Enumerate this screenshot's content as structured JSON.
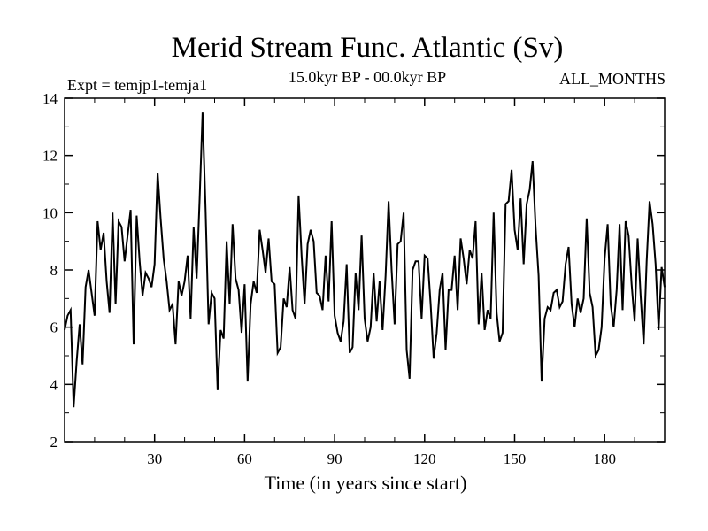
{
  "chart_data": {
    "type": "line",
    "title": "Merid Stream Func. Atlantic (Sv)",
    "subtitle_left": "Expt = temjp1-temja1",
    "subtitle_center": "15.0kyr BP - 00.0kyr BP",
    "subtitle_right": "ALL_MONTHS",
    "xlabel": "Time (in years since start)",
    "ylabel": "",
    "xlim": [
      0,
      200
    ],
    "ylim": [
      2,
      14
    ],
    "x_ticks": [
      30,
      60,
      90,
      120,
      150,
      180
    ],
    "y_ticks": [
      2,
      4,
      6,
      8,
      10,
      12,
      14
    ],
    "grid": false,
    "series": [
      {
        "name": "Merid Stream Func. Atlantic",
        "values": [
          5.9,
          6.4,
          6.6,
          3.2,
          4.8,
          6.1,
          4.7,
          7.4,
          8.0,
          7.2,
          6.4,
          9.7,
          8.7,
          9.3,
          7.6,
          6.5,
          10.0,
          6.8,
          9.7,
          9.5,
          8.3,
          9.2,
          10.1,
          5.4,
          9.9,
          8.3,
          7.1,
          7.9,
          7.7,
          7.4,
          8.2,
          11.4,
          9.8,
          8.4,
          7.6,
          6.6,
          6.8,
          5.4,
          7.6,
          7.1,
          7.6,
          8.5,
          6.3,
          9.5,
          7.7,
          10.5,
          13.5,
          10.1,
          6.1,
          7.2,
          7.0,
          3.8,
          5.9,
          5.6,
          9.0,
          6.8,
          9.6,
          7.7,
          7.3,
          5.8,
          7.5,
          4.1,
          6.8,
          7.6,
          7.2,
          9.4,
          8.7,
          7.9,
          9.1,
          7.6,
          7.5,
          5.1,
          5.3,
          7.0,
          6.7,
          8.1,
          6.6,
          6.3,
          10.6,
          8.5,
          6.8,
          8.9,
          9.4,
          9.0,
          7.2,
          7.1,
          6.6,
          8.5,
          6.9,
          9.7,
          6.4,
          5.8,
          5.5,
          6.2,
          8.2,
          5.1,
          5.3,
          7.9,
          6.6,
          9.2,
          6.3,
          5.5,
          6.0,
          7.9,
          6.2,
          7.6,
          5.9,
          7.8,
          10.4,
          8.0,
          6.1,
          8.9,
          9.0,
          10.0,
          5.2,
          4.2,
          8.0,
          8.3,
          8.3,
          6.3,
          8.5,
          8.4,
          6.8,
          4.9,
          5.8,
          7.3,
          7.9,
          5.2,
          7.3,
          7.3,
          8.5,
          6.6,
          9.1,
          8.4,
          7.5,
          8.7,
          8.4,
          9.7,
          6.1,
          7.9,
          5.9,
          6.6,
          6.3,
          10.0,
          6.5,
          5.5,
          5.8,
          10.3,
          10.4,
          11.5,
          9.4,
          8.7,
          10.5,
          8.2,
          10.3,
          10.8,
          11.8,
          9.5,
          7.8,
          4.1,
          6.3,
          6.7,
          6.6,
          7.2,
          7.3,
          6.7,
          6.9,
          8.2,
          8.8,
          6.8,
          6.0,
          7.0,
          6.5,
          7.0,
          9.8,
          7.2,
          6.7,
          5.0,
          5.2,
          6.0,
          8.4,
          9.6,
          6.8,
          6.0,
          7.3,
          9.6,
          6.6,
          9.7,
          9.2,
          7.5,
          6.2,
          9.1,
          7.1,
          5.4,
          8.3,
          10.4,
          9.6,
          8.2,
          5.9,
          8.1,
          7.4
        ]
      }
    ]
  }
}
